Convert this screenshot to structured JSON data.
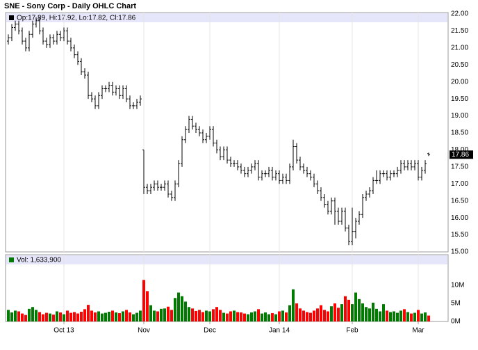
{
  "chart_data": [
    {
      "type": "ohlc",
      "title": "SNE - Sony Corp - Daily OHLC Chart",
      "legend_text": "Op:17.89, Hi:17.92, Lo:17.82, Cl:17.86",
      "color": "#000000",
      "grid": true,
      "open": [
        21.2,
        21.3,
        21.6,
        21.7,
        21.5,
        21.2,
        21.0,
        21.4,
        21.7,
        21.8,
        21.5,
        21.2,
        21.1,
        21.3,
        21.2,
        21.4,
        21.3,
        21.5,
        21.2,
        21.0,
        20.8,
        20.6,
        20.3,
        20.2,
        19.6,
        19.5,
        19.3,
        19.6,
        19.8,
        19.8,
        19.9,
        19.7,
        19.8,
        19.6,
        19.8,
        19.5,
        19.3,
        19.3,
        19.4,
        18.0,
        16.9,
        16.8,
        16.9,
        17.0,
        16.9,
        16.9,
        17.0,
        16.7,
        16.6,
        17.0,
        17.6,
        18.3,
        18.6,
        18.9,
        18.7,
        18.6,
        18.5,
        18.3,
        18.4,
        18.6,
        18.2,
        18.0,
        17.8,
        18.0,
        17.7,
        17.6,
        17.6,
        17.5,
        17.4,
        17.3,
        17.4,
        17.5,
        17.6,
        17.2,
        17.3,
        17.3,
        17.4,
        17.2,
        17.3,
        17.1,
        17.2,
        17.1,
        17.5,
        18.1,
        17.7,
        17.5,
        17.4,
        17.3,
        17.2,
        17.0,
        16.8,
        16.6,
        16.4,
        16.2,
        16.5,
        16.2,
        15.9,
        16.2,
        15.7,
        15.3,
        15.6,
        15.9,
        16.1,
        16.6,
        16.7,
        16.8,
        17.1,
        17.1,
        17.3,
        17.3,
        17.2,
        17.3,
        17.3,
        17.4,
        17.6,
        17.5,
        17.6,
        17.5,
        17.6,
        17.2,
        17.4,
        17.89
      ],
      "high": [
        21.4,
        21.7,
        21.8,
        21.8,
        21.6,
        21.3,
        21.5,
        21.8,
        21.9,
        21.9,
        21.6,
        21.3,
        21.4,
        21.4,
        21.5,
        21.5,
        21.6,
        21.6,
        21.3,
        21.1,
        20.9,
        20.7,
        20.4,
        20.3,
        19.7,
        19.6,
        19.7,
        19.9,
        19.9,
        20.0,
        20.0,
        19.9,
        19.9,
        19.9,
        19.9,
        19.6,
        19.4,
        19.5,
        19.6,
        18.0,
        17.0,
        17.0,
        17.1,
        17.1,
        17.0,
        17.1,
        17.1,
        16.8,
        17.1,
        17.7,
        18.4,
        18.7,
        19.0,
        19.0,
        18.8,
        18.7,
        18.6,
        18.5,
        18.7,
        18.7,
        18.3,
        18.1,
        18.1,
        18.1,
        17.8,
        17.7,
        17.7,
        17.6,
        17.5,
        17.5,
        17.6,
        17.7,
        17.7,
        17.4,
        17.4,
        17.5,
        17.5,
        17.4,
        17.4,
        17.3,
        17.3,
        17.6,
        18.3,
        18.2,
        17.8,
        17.6,
        17.5,
        17.4,
        17.3,
        17.1,
        16.9,
        16.7,
        16.5,
        16.6,
        16.6,
        16.3,
        16.3,
        16.3,
        15.8,
        16.3,
        16.0,
        16.2,
        16.7,
        16.8,
        16.9,
        17.2,
        17.4,
        17.4,
        17.4,
        17.4,
        17.4,
        17.4,
        17.5,
        17.7,
        17.7,
        17.7,
        17.7,
        17.7,
        17.7,
        17.5,
        17.7,
        17.92
      ],
      "low": [
        21.1,
        21.2,
        21.5,
        21.4,
        21.1,
        20.9,
        20.9,
        21.3,
        21.6,
        21.4,
        21.1,
        21.0,
        21.0,
        21.1,
        21.1,
        21.2,
        21.2,
        21.1,
        20.9,
        20.7,
        20.5,
        20.2,
        20.1,
        19.5,
        19.4,
        19.2,
        19.2,
        19.5,
        19.7,
        19.7,
        19.6,
        19.6,
        19.5,
        19.5,
        19.4,
        19.2,
        19.2,
        19.2,
        19.3,
        16.7,
        16.7,
        16.7,
        16.8,
        16.8,
        16.8,
        16.8,
        16.6,
        16.5,
        16.5,
        16.9,
        17.5,
        18.2,
        18.5,
        18.6,
        18.5,
        18.4,
        18.2,
        18.2,
        18.3,
        18.1,
        17.9,
        17.7,
        17.7,
        17.6,
        17.5,
        17.5,
        17.4,
        17.3,
        17.2,
        17.2,
        17.3,
        17.4,
        17.1,
        17.1,
        17.2,
        17.2,
        17.1,
        17.1,
        17.0,
        17.0,
        17.0,
        17.0,
        17.4,
        17.6,
        17.4,
        17.3,
        17.2,
        17.1,
        16.9,
        16.7,
        16.5,
        16.3,
        16.1,
        16.1,
        15.8,
        15.8,
        15.8,
        15.6,
        15.2,
        15.2,
        15.4,
        15.8,
        16.0,
        16.5,
        16.6,
        16.7,
        17.0,
        17.0,
        17.2,
        17.1,
        17.1,
        17.2,
        17.2,
        17.3,
        17.4,
        17.4,
        17.4,
        17.4,
        17.1,
        17.1,
        17.3,
        17.82
      ],
      "close": [
        21.3,
        21.6,
        21.7,
        21.5,
        21.2,
        21.0,
        21.4,
        21.7,
        21.8,
        21.5,
        21.2,
        21.1,
        21.3,
        21.2,
        21.4,
        21.3,
        21.5,
        21.2,
        21.0,
        20.8,
        20.6,
        20.3,
        20.2,
        19.6,
        19.5,
        19.3,
        19.6,
        19.8,
        19.8,
        19.9,
        19.7,
        19.8,
        19.6,
        19.8,
        19.5,
        19.3,
        19.3,
        19.4,
        19.5,
        16.9,
        16.8,
        16.9,
        17.0,
        16.9,
        16.9,
        17.0,
        16.7,
        16.6,
        17.0,
        17.6,
        18.3,
        18.6,
        18.9,
        18.7,
        18.6,
        18.5,
        18.3,
        18.4,
        18.6,
        18.2,
        18.0,
        17.8,
        18.0,
        17.7,
        17.6,
        17.6,
        17.5,
        17.4,
        17.3,
        17.4,
        17.5,
        17.6,
        17.2,
        17.3,
        17.3,
        17.4,
        17.2,
        17.3,
        17.1,
        17.2,
        17.1,
        17.5,
        18.1,
        17.7,
        17.5,
        17.4,
        17.3,
        17.2,
        17.0,
        16.8,
        16.6,
        16.4,
        16.2,
        16.5,
        16.2,
        15.9,
        16.2,
        15.7,
        15.3,
        15.6,
        15.9,
        16.1,
        16.6,
        16.7,
        16.8,
        17.1,
        17.1,
        17.3,
        17.3,
        17.2,
        17.3,
        17.3,
        17.4,
        17.6,
        17.5,
        17.6,
        17.5,
        17.6,
        17.2,
        17.4,
        17.6,
        17.86
      ],
      "ylim": [
        15,
        22
      ],
      "yticks": [
        {
          "value": 15,
          "label": "15.00"
        },
        {
          "value": 15.5,
          "label": "15.50"
        },
        {
          "value": 16,
          "label": "16.00"
        },
        {
          "value": 16.5,
          "label": "16.50"
        },
        {
          "value": 17,
          "label": "17.00"
        },
        {
          "value": 17.5,
          "label": "17.50"
        },
        {
          "value": 18,
          "label": "18.00"
        },
        {
          "value": 18.5,
          "label": "18.50"
        },
        {
          "value": 19,
          "label": "19.00"
        },
        {
          "value": 19.5,
          "label": "19.50"
        },
        {
          "value": 20,
          "label": "20.00"
        },
        {
          "value": 20.5,
          "label": "20.50"
        },
        {
          "value": 21,
          "label": "21.00"
        },
        {
          "value": 21.5,
          "label": "21.50"
        },
        {
          "value": 22,
          "label": "22.00"
        }
      ]
    },
    {
      "type": "bar",
      "legend_text": "Vol: 1,633,900",
      "up_color": "#007a00",
      "down_color": "#ff0000",
      "grid": true,
      "categories": [
        null,
        null,
        null,
        null,
        null,
        null,
        null,
        null,
        null,
        null,
        null,
        null,
        null,
        null,
        null,
        null,
        "Oct 13",
        null,
        null,
        null,
        null,
        null,
        null,
        null,
        null,
        null,
        null,
        null,
        null,
        null,
        null,
        null,
        null,
        null,
        null,
        null,
        null,
        null,
        null,
        "Nov",
        null,
        null,
        null,
        null,
        null,
        null,
        null,
        null,
        null,
        null,
        null,
        null,
        null,
        null,
        null,
        null,
        null,
        null,
        "Dec",
        null,
        null,
        null,
        null,
        null,
        null,
        null,
        null,
        null,
        null,
        null,
        null,
        null,
        null,
        null,
        null,
        null,
        null,
        null,
        "Jan 14",
        null,
        null,
        null,
        null,
        null,
        null,
        null,
        null,
        null,
        null,
        null,
        null,
        null,
        null,
        null,
        null,
        null,
        null,
        null,
        null,
        "Feb",
        null,
        null,
        null,
        null,
        null,
        null,
        null,
        null,
        null,
        null,
        null,
        null,
        null,
        null,
        null,
        null,
        null,
        null,
        "Mar",
        null,
        null,
        null
      ],
      "values": [
        3200000,
        2500000,
        3000000,
        2800000,
        2200000,
        1800000,
        3500000,
        4000000,
        3200000,
        2600000,
        2000000,
        2400000,
        2200000,
        1900000,
        2800000,
        2500000,
        2000000,
        3000000,
        2400000,
        2600000,
        2200000,
        2700000,
        3400000,
        4600000,
        3000000,
        2500000,
        2800000,
        2200000,
        2400000,
        2700000,
        3000000,
        2500000,
        2300000,
        2800000,
        3200000,
        2500000,
        2000000,
        2400000,
        3000000,
        11500000,
        8400000,
        4500000,
        3000000,
        2800000,
        3500000,
        3600000,
        4100000,
        3200000,
        6500000,
        8000000,
        7000000,
        5500000,
        4000000,
        3600000,
        2900000,
        3200000,
        2600000,
        3000000,
        2800000,
        3400000,
        4000000,
        3200000,
        2400000,
        2200000,
        2800000,
        3000000,
        2600000,
        2500000,
        2200000,
        2000000,
        2500000,
        2800000,
        3400000,
        2200000,
        2500000,
        2000000,
        2300000,
        2000000,
        2800000,
        3000000,
        2500000,
        4500000,
        8900000,
        5000000,
        3600000,
        3000000,
        2600000,
        2400000,
        3000000,
        3600000,
        4500000,
        3200000,
        2800000,
        4200000,
        5000000,
        3800000,
        4800000,
        7000000,
        6000000,
        4800000,
        8000000,
        6200000,
        5000000,
        4000000,
        3600000,
        5200000,
        3500000,
        2800000,
        4800000,
        3000000,
        2600000,
        2800000,
        2400000,
        3000000,
        3400000,
        2600000,
        2200000,
        2400000,
        3200000,
        2200000,
        2500000,
        1633900
      ],
      "ylim": [
        0,
        18500000
      ],
      "yticks": [
        {
          "value": 0,
          "label": "0M"
        },
        {
          "value": 5000000,
          "label": "5M"
        },
        {
          "value": 10000000,
          "label": "10M"
        }
      ]
    }
  ]
}
